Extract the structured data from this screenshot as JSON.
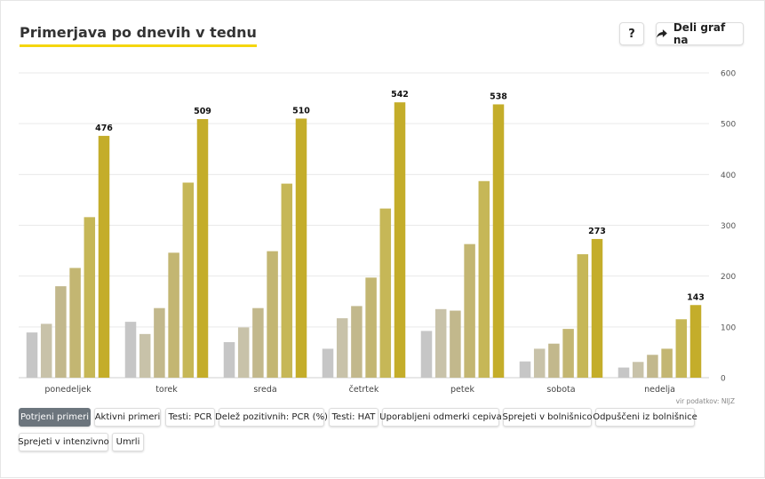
{
  "title": "Primerjava po dnevih v tednu",
  "help_label": "?",
  "share_label": "Deli graf na",
  "source": "vir podatkov: NIJZ",
  "colors": [
    "#c6c6c6",
    "#c8c2a9",
    "#c2b88c",
    "#c3b672",
    "#c6b757",
    "#c4ad2a"
  ],
  "filters": [
    "Potrjeni primeri",
    "Aktivni primeri",
    "Testi: PCR",
    "Delež pozitivnih: PCR (%)",
    "Testi: HAT",
    "Uporabljeni odmerki cepiva",
    "Sprejeti v bolnišnico",
    "Odpuščeni iz bolnišnice",
    "Sprejeti v intenzivno",
    "Umrli"
  ],
  "active_filter": "Potrjeni primeri",
  "chart_data": {
    "type": "bar",
    "title": "Primerjava po dnevih v tednu",
    "categories": [
      "ponedeljek",
      "torek",
      "sreda",
      "četrtek",
      "petek",
      "sobota",
      "nedelja"
    ],
    "series": [
      {
        "values": [
          89,
          110,
          70,
          57,
          92,
          32,
          20
        ]
      },
      {
        "values": [
          106,
          86,
          99,
          117,
          135,
          57,
          31
        ]
      },
      {
        "values": [
          180,
          137,
          137,
          141,
          132,
          67,
          45
        ]
      },
      {
        "values": [
          216,
          246,
          249,
          197,
          263,
          96,
          57
        ]
      },
      {
        "values": [
          316,
          384,
          382,
          333,
          387,
          243,
          115
        ]
      },
      {
        "values": [
          476,
          509,
          510,
          542,
          538,
          273,
          143
        ]
      }
    ],
    "data_labels": [
      "476",
      "509",
      "510",
      "542",
      "538",
      "273",
      "143"
    ],
    "ylim": [
      0,
      600
    ],
    "yticks": [
      "0",
      "100",
      "200",
      "300",
      "400",
      "500",
      "600"
    ],
    "grid": true,
    "y_axis_position": "right"
  }
}
